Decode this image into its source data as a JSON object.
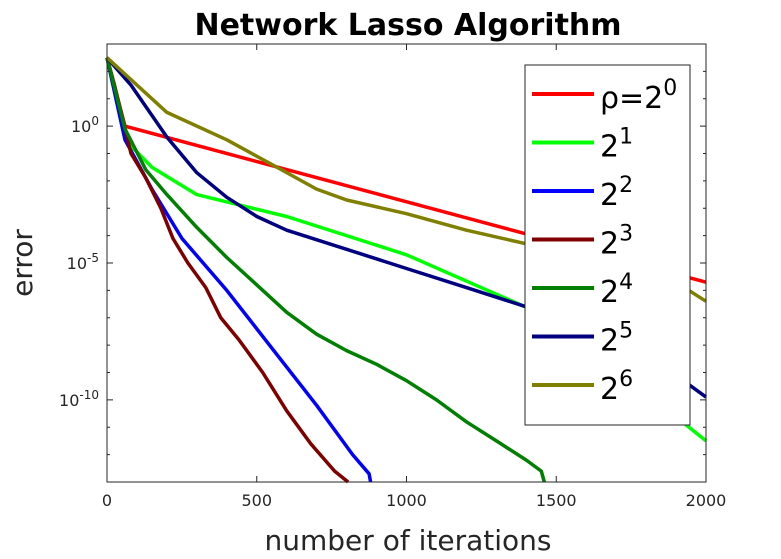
{
  "chart_data": {
    "type": "line",
    "title": "Network Lasso Algorithm",
    "xlabel": "number of iterations",
    "ylabel": "error",
    "xlim": [
      0,
      2000
    ],
    "ylim_log10": [
      -13,
      3
    ],
    "y_scale": "log",
    "x_ticks": [
      "0",
      "500",
      "1000",
      "1500",
      "2000"
    ],
    "y_ticks": [
      {
        "base": "10",
        "exp": "0",
        "log10": 0
      },
      {
        "base": "10",
        "exp": "-5",
        "log10": -5
      },
      {
        "base": "10",
        "exp": "-10",
        "log10": -10
      }
    ],
    "grid": false,
    "legend_position": "top-right",
    "series": [
      {
        "name": "ρ=2^0",
        "label_main": "ρ=2",
        "label_exp": "0",
        "color": "#ff0000",
        "points": [
          [
            0,
            2.5
          ],
          [
            60,
            0
          ],
          [
            2000,
            -5.7
          ]
        ]
      },
      {
        "name": "2^1",
        "label_main": "2",
        "label_exp": "1",
        "color": "#00ff00",
        "points": [
          [
            0,
            2.5
          ],
          [
            60,
            -0.5
          ],
          [
            150,
            -1.5
          ],
          [
            300,
            -2.5
          ],
          [
            600,
            -3.3
          ],
          [
            1000,
            -4.7
          ],
          [
            1500,
            -7.1
          ],
          [
            2000,
            -11.5
          ]
        ]
      },
      {
        "name": "2^2",
        "label_main": "2",
        "label_exp": "2",
        "color": "#0000ff",
        "points": [
          [
            0,
            2.5
          ],
          [
            60,
            -0.5
          ],
          [
            150,
            -2.3
          ],
          [
            250,
            -4.1
          ],
          [
            400,
            -6.0
          ],
          [
            550,
            -8.1
          ],
          [
            700,
            -10.2
          ],
          [
            820,
            -12.0
          ],
          [
            875,
            -12.7
          ],
          [
            880,
            -13.0
          ]
        ]
      },
      {
        "name": "2^3",
        "label_main": "2",
        "label_exp": "3",
        "color": "#800000",
        "points": [
          [
            0,
            2.5
          ],
          [
            25,
            1.5
          ],
          [
            80,
            -1.0
          ],
          [
            130,
            -1.9
          ],
          [
            180,
            -3.0
          ],
          [
            220,
            -4.1
          ],
          [
            270,
            -5.0
          ],
          [
            330,
            -5.9
          ],
          [
            380,
            -7.0
          ],
          [
            440,
            -7.8
          ],
          [
            520,
            -9.0
          ],
          [
            600,
            -10.4
          ],
          [
            680,
            -11.6
          ],
          [
            760,
            -12.6
          ],
          [
            805,
            -13.0
          ]
        ]
      },
      {
        "name": "2^4",
        "label_main": "2",
        "label_exp": "4",
        "color": "#008000",
        "points": [
          [
            0,
            2.5
          ],
          [
            60,
            -0.1
          ],
          [
            130,
            -1.6
          ],
          [
            200,
            -2.5
          ],
          [
            300,
            -3.7
          ],
          [
            400,
            -4.8
          ],
          [
            500,
            -5.8
          ],
          [
            600,
            -6.8
          ],
          [
            700,
            -7.6
          ],
          [
            800,
            -8.2
          ],
          [
            900,
            -8.7
          ],
          [
            1000,
            -9.3
          ],
          [
            1100,
            -10.0
          ],
          [
            1200,
            -10.8
          ],
          [
            1300,
            -11.5
          ],
          [
            1400,
            -12.2
          ],
          [
            1450,
            -12.6
          ],
          [
            1460,
            -13.0
          ]
        ]
      },
      {
        "name": "2^5",
        "label_main": "2",
        "label_exp": "5",
        "color": "#000080",
        "points": [
          [
            0,
            2.5
          ],
          [
            80,
            1.5
          ],
          [
            200,
            -0.4
          ],
          [
            300,
            -1.7
          ],
          [
            400,
            -2.6
          ],
          [
            500,
            -3.3
          ],
          [
            600,
            -3.8
          ],
          [
            800,
            -4.5
          ],
          [
            1000,
            -5.2
          ],
          [
            1200,
            -5.9
          ],
          [
            1400,
            -6.6
          ],
          [
            1600,
            -7.4
          ],
          [
            1800,
            -8.3
          ],
          [
            2000,
            -9.9
          ]
        ]
      },
      {
        "name": "2^6",
        "label_main": "2",
        "label_exp": "6",
        "color": "#808000",
        "points": [
          [
            0,
            2.5
          ],
          [
            200,
            0.5
          ],
          [
            400,
            -0.5
          ],
          [
            550,
            -1.4
          ],
          [
            700,
            -2.3
          ],
          [
            800,
            -2.7
          ],
          [
            1000,
            -3.2
          ],
          [
            1200,
            -3.8
          ],
          [
            1400,
            -4.3
          ],
          [
            1500,
            -4.6
          ],
          [
            1600,
            -4.9
          ],
          [
            1800,
            -5.1
          ],
          [
            1900,
            -5.7
          ],
          [
            2000,
            -6.4
          ]
        ]
      }
    ]
  }
}
